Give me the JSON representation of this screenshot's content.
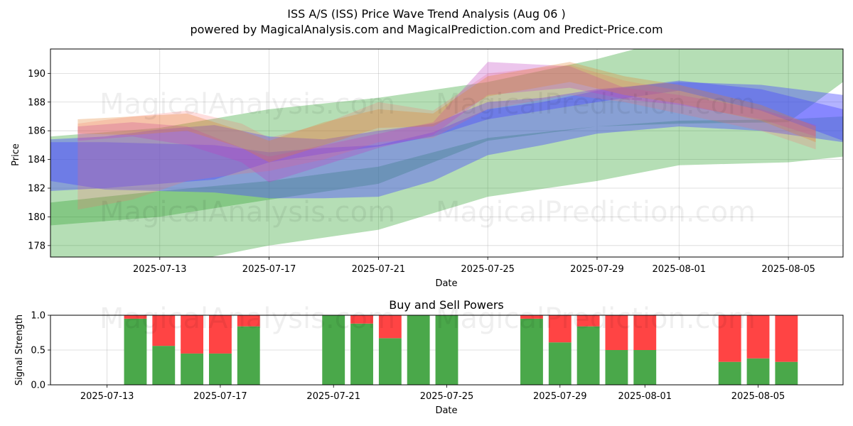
{
  "title_line1": "ISS A/S (ISS) Price Wave Trend Analysis (Aug 06 )",
  "title_line2": "powered by MagicalAnalysis.com and MagicalPrediction.com and Predict-Price.com",
  "watermarks": [
    "MagicalAnalysis.com",
    "MagicalPrediction.com"
  ],
  "colors": {
    "green": "#2ca02c",
    "blue": "#4b4bff",
    "red": "#ff6a6a",
    "magenta": "#c040c0",
    "orange": "#e08030",
    "buy": "#4aa84a",
    "sell": "#ff4444"
  },
  "chart_data": [
    {
      "type": "area",
      "title": "",
      "xlabel": "Date",
      "ylabel": "Price",
      "x_range": [
        "2025-07-09",
        "2025-08-07"
      ],
      "ylim": [
        177.2,
        191.7
      ],
      "x_ticks": [
        "2025-07-13",
        "2025-07-17",
        "2025-07-21",
        "2025-07-25",
        "2025-07-29",
        "2025-08-01",
        "2025-08-05"
      ],
      "y_ticks": [
        178,
        180,
        182,
        184,
        186,
        188,
        190
      ],
      "grid": true,
      "bands": [
        {
          "color": "green",
          "x": [
            "2025-07-09",
            "2025-07-13",
            "2025-07-17",
            "2025-07-21",
            "2025-07-25",
            "2025-07-29",
            "2025-08-01",
            "2025-08-05",
            "2025-08-07"
          ],
          "upper": [
            185.6,
            186.2,
            187.5,
            188.3,
            189.4,
            191.0,
            192.5,
            191.8,
            191.8
          ],
          "lower": [
            179.4,
            180.0,
            181.2,
            182.3,
            185.3,
            186.3,
            186.5,
            186.6,
            189.4
          ]
        },
        {
          "color": "green",
          "x": [
            "2025-07-09",
            "2025-07-13",
            "2025-07-17",
            "2025-07-21",
            "2025-07-25",
            "2025-07-29",
            "2025-08-01",
            "2025-08-05",
            "2025-08-07"
          ],
          "upper": [
            181.0,
            181.8,
            182.5,
            183.5,
            185.5,
            186.3,
            186.7,
            186.8,
            187.0
          ],
          "lower": [
            176.0,
            176.5,
            178.0,
            179.1,
            181.4,
            182.5,
            183.6,
            183.8,
            184.2
          ]
        },
        {
          "color": "blue",
          "x": [
            "2025-07-09",
            "2025-07-11",
            "2025-07-13",
            "2025-07-15",
            "2025-07-17",
            "2025-07-19",
            "2025-07-21",
            "2025-07-23",
            "2025-07-25",
            "2025-07-27",
            "2025-07-29",
            "2025-08-01",
            "2025-08-04",
            "2025-08-07"
          ],
          "upper": [
            185.4,
            185.6,
            186.1,
            186.4,
            185.6,
            185.4,
            186.0,
            186.5,
            188.0,
            188.3,
            188.9,
            189.4,
            189.2,
            188.5
          ],
          "lower": [
            181.8,
            182.0,
            182.3,
            182.6,
            183.8,
            184.4,
            184.9,
            185.6,
            186.8,
            187.4,
            188.0,
            188.8,
            187.4,
            185.3
          ]
        },
        {
          "color": "blue",
          "x": [
            "2025-07-09",
            "2025-07-11",
            "2025-07-13",
            "2025-07-15",
            "2025-07-17",
            "2025-07-19",
            "2025-07-21",
            "2025-07-23",
            "2025-07-25",
            "2025-07-27",
            "2025-07-29",
            "2025-08-01",
            "2025-08-04",
            "2025-08-07"
          ],
          "upper": [
            185.2,
            185.2,
            185.1,
            185.0,
            184.5,
            184.8,
            185.0,
            185.9,
            187.5,
            188.0,
            188.8,
            189.5,
            188.9,
            187.5
          ],
          "lower": [
            182.5,
            181.9,
            181.8,
            181.7,
            181.3,
            181.3,
            181.4,
            182.5,
            184.3,
            185.0,
            185.8,
            186.3,
            186.0,
            185.2
          ]
        },
        {
          "color": "red",
          "x": [
            "2025-07-10",
            "2025-07-12",
            "2025-07-14",
            "2025-07-16",
            "2025-07-17",
            "2025-07-19",
            "2025-07-21",
            "2025-07-23",
            "2025-07-25",
            "2025-07-28",
            "2025-07-30",
            "2025-08-01",
            "2025-08-04",
            "2025-08-06"
          ],
          "upper": [
            186.5,
            187.0,
            187.4,
            186.5,
            185.5,
            186.5,
            188.0,
            187.4,
            190.0,
            190.6,
            189.5,
            188.8,
            187.4,
            186.0
          ],
          "lower": [
            180.5,
            181.2,
            182.5,
            183.0,
            183.2,
            184.0,
            185.2,
            185.5,
            187.5,
            188.5,
            188.0,
            187.2,
            186.0,
            184.7
          ]
        },
        {
          "color": "magenta",
          "x": [
            "2025-07-10",
            "2025-07-12",
            "2025-07-14",
            "2025-07-16",
            "2025-07-17",
            "2025-07-19",
            "2025-07-21",
            "2025-07-23",
            "2025-07-25",
            "2025-07-28",
            "2025-07-30",
            "2025-08-01",
            "2025-08-04",
            "2025-08-06"
          ],
          "upper": [
            186.3,
            186.6,
            186.3,
            184.8,
            184.2,
            185.0,
            185.8,
            186.6,
            190.8,
            190.5,
            189.0,
            188.5,
            187.5,
            186.4
          ],
          "lower": [
            185.3,
            185.6,
            185.0,
            183.8,
            182.4,
            183.6,
            184.8,
            185.7,
            188.5,
            189.0,
            188.2,
            187.8,
            186.8,
            185.6
          ]
        },
        {
          "color": "orange",
          "x": [
            "2025-07-10",
            "2025-07-12",
            "2025-07-14",
            "2025-07-16",
            "2025-07-17",
            "2025-07-19",
            "2025-07-21",
            "2025-07-23",
            "2025-07-25",
            "2025-07-28",
            "2025-07-30",
            "2025-08-01",
            "2025-08-04",
            "2025-08-06"
          ],
          "upper": [
            186.8,
            187.0,
            187.2,
            186.0,
            185.3,
            186.6,
            187.5,
            187.2,
            189.8,
            190.8,
            189.8,
            189.2,
            187.8,
            186.3
          ],
          "lower": [
            185.8,
            185.7,
            186.0,
            184.8,
            183.8,
            185.0,
            186.2,
            186.3,
            188.4,
            189.4,
            188.5,
            187.9,
            186.7,
            185.2
          ]
        }
      ]
    },
    {
      "type": "bar",
      "title": "Buy and Sell Powers",
      "xlabel": "Date",
      "ylabel": "Signal Strength",
      "x_range": [
        "2025-07-11",
        "2025-08-08"
      ],
      "ylim": [
        0,
        1.0
      ],
      "x_ticks": [
        "2025-07-13",
        "2025-07-17",
        "2025-07-21",
        "2025-07-25",
        "2025-07-29",
        "2025-08-01",
        "2025-08-05"
      ],
      "y_ticks": [
        "0.0",
        "0.5",
        "1.0"
      ],
      "grid": true,
      "dates": [
        "2025-07-14",
        "2025-07-15",
        "2025-07-16",
        "2025-07-17",
        "2025-07-18",
        "2025-07-21",
        "2025-07-22",
        "2025-07-23",
        "2025-07-24",
        "2025-07-25",
        "2025-07-28",
        "2025-07-29",
        "2025-07-30",
        "2025-07-31",
        "2025-08-01",
        "2025-08-04",
        "2025-08-05",
        "2025-08-06"
      ],
      "buy": [
        0.95,
        0.56,
        0.45,
        0.45,
        0.84,
        1.0,
        0.88,
        0.67,
        1.0,
        1.0,
        0.95,
        0.61,
        0.84,
        0.5,
        0.5,
        0.33,
        0.38,
        0.33
      ],
      "sell": [
        0.05,
        0.44,
        0.55,
        0.55,
        0.16,
        0.0,
        0.12,
        0.33,
        0.0,
        0.0,
        0.05,
        0.39,
        0.16,
        0.5,
        0.5,
        0.67,
        0.62,
        0.67
      ]
    }
  ]
}
